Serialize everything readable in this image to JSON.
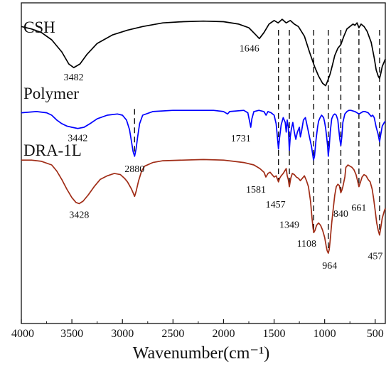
{
  "chart_data": {
    "type": "line",
    "title": "",
    "xlabel": "Wavenumber(cm⁻¹)",
    "ylabel": "",
    "xlim": [
      4000,
      400
    ],
    "x_reversed": true,
    "x_ticks": [
      4000,
      3500,
      3000,
      2500,
      2000,
      1500,
      1000,
      500
    ],
    "grid": false,
    "legend": "none",
    "series": [
      {
        "name": "CSH",
        "color": "#000000",
        "points": [
          [
            4000,
            91
          ],
          [
            3900,
            89
          ],
          [
            3800,
            86
          ],
          [
            3700,
            80
          ],
          [
            3600,
            70
          ],
          [
            3530,
            60
          ],
          [
            3482,
            57
          ],
          [
            3420,
            60
          ],
          [
            3350,
            68
          ],
          [
            3250,
            77
          ],
          [
            3100,
            84
          ],
          [
            2950,
            88
          ],
          [
            2800,
            91
          ],
          [
            2600,
            94
          ],
          [
            2400,
            95
          ],
          [
            2200,
            95.5
          ],
          [
            2000,
            95
          ],
          [
            1850,
            93
          ],
          [
            1750,
            90
          ],
          [
            1680,
            84
          ],
          [
            1646,
            81
          ],
          [
            1600,
            86
          ],
          [
            1550,
            93
          ],
          [
            1500,
            96
          ],
          [
            1460,
            94
          ],
          [
            1420,
            97
          ],
          [
            1380,
            94
          ],
          [
            1340,
            96
          ],
          [
            1300,
            93
          ],
          [
            1260,
            91
          ],
          [
            1200,
            83
          ],
          [
            1150,
            70
          ],
          [
            1100,
            58
          ],
          [
            1060,
            50
          ],
          [
            1020,
            44
          ],
          [
            990,
            42
          ],
          [
            970,
            46
          ],
          [
            945,
            52
          ],
          [
            920,
            60
          ],
          [
            900,
            67
          ],
          [
            870,
            73
          ],
          [
            840,
            76
          ],
          [
            810,
            83
          ],
          [
            780,
            89
          ],
          [
            750,
            91
          ],
          [
            720,
            93
          ],
          [
            700,
            92
          ],
          [
            680,
            94
          ],
          [
            661,
            90
          ],
          [
            640,
            93
          ],
          [
            610,
            91
          ],
          [
            580,
            87
          ],
          [
            540,
            78
          ],
          [
            510,
            65
          ],
          [
            490,
            55
          ],
          [
            470,
            50
          ],
          [
            457,
            48
          ],
          [
            445,
            52
          ],
          [
            430,
            58
          ],
          [
            410,
            62
          ],
          [
            400,
            64
          ]
        ],
        "peak_labels": [
          3482,
          1646
        ]
      },
      {
        "name": "Polymer",
        "color": "#0000ff",
        "points": [
          [
            4000,
            42
          ],
          [
            3850,
            43
          ],
          [
            3750,
            42
          ],
          [
            3700,
            40
          ],
          [
            3650,
            36
          ],
          [
            3600,
            33
          ],
          [
            3550,
            31
          ],
          [
            3500,
            30
          ],
          [
            3442,
            29
          ],
          [
            3380,
            30
          ],
          [
            3320,
            33
          ],
          [
            3250,
            37
          ],
          [
            3150,
            40
          ],
          [
            3050,
            41
          ],
          [
            3000,
            40
          ],
          [
            2960,
            36
          ],
          [
            2930,
            28
          ],
          [
            2910,
            18
          ],
          [
            2895,
            10
          ],
          [
            2880,
            6
          ],
          [
            2865,
            12
          ],
          [
            2850,
            22
          ],
          [
            2830,
            33
          ],
          [
            2800,
            40
          ],
          [
            2700,
            43
          ],
          [
            2500,
            44
          ],
          [
            2300,
            44
          ],
          [
            2100,
            44
          ],
          [
            2000,
            43
          ],
          [
            1960,
            41
          ],
          [
            1940,
            43
          ],
          [
            1800,
            44
          ],
          [
            1760,
            42
          ],
          [
            1740,
            34
          ],
          [
            1731,
            30
          ],
          [
            1720,
            37
          ],
          [
            1700,
            43
          ],
          [
            1650,
            44
          ],
          [
            1600,
            43
          ],
          [
            1580,
            40
          ],
          [
            1560,
            43
          ],
          [
            1530,
            42
          ],
          [
            1500,
            40
          ],
          [
            1480,
            33
          ],
          [
            1465,
            20
          ],
          [
            1457,
            12
          ],
          [
            1445,
            22
          ],
          [
            1430,
            32
          ],
          [
            1410,
            38
          ],
          [
            1390,
            34
          ],
          [
            1380,
            26
          ],
          [
            1370,
            36
          ],
          [
            1360,
            30
          ],
          [
            1349,
            11
          ],
          [
            1340,
            22
          ],
          [
            1330,
            28
          ],
          [
            1315,
            34
          ],
          [
            1300,
            26
          ],
          [
            1285,
            20
          ],
          [
            1270,
            26
          ],
          [
            1250,
            30
          ],
          [
            1240,
            22
          ],
          [
            1230,
            26
          ],
          [
            1210,
            36
          ],
          [
            1190,
            38
          ],
          [
            1170,
            30
          ],
          [
            1150,
            22
          ],
          [
            1130,
            14
          ],
          [
            1110,
            3
          ],
          [
            1100,
            6
          ],
          [
            1085,
            20
          ],
          [
            1070,
            30
          ],
          [
            1060,
            35
          ],
          [
            1045,
            38
          ],
          [
            1030,
            40
          ],
          [
            1010,
            38
          ],
          [
            1000,
            34
          ],
          [
            990,
            29
          ],
          [
            980,
            22
          ],
          [
            970,
            14
          ],
          [
            964,
            6
          ],
          [
            955,
            14
          ],
          [
            945,
            26
          ],
          [
            930,
            37
          ],
          [
            915,
            40
          ],
          [
            900,
            41
          ],
          [
            885,
            40
          ],
          [
            870,
            36
          ],
          [
            860,
            28
          ],
          [
            850,
            20
          ],
          [
            840,
            15
          ],
          [
            830,
            22
          ],
          [
            820,
            34
          ],
          [
            800,
            41
          ],
          [
            780,
            43
          ],
          [
            760,
            44
          ],
          [
            740,
            44
          ],
          [
            700,
            43
          ],
          [
            680,
            42
          ],
          [
            661,
            41
          ],
          [
            640,
            42
          ],
          [
            620,
            43
          ],
          [
            600,
            43
          ],
          [
            570,
            42
          ],
          [
            540,
            39
          ],
          [
            525,
            40
          ],
          [
            510,
            38
          ],
          [
            490,
            30
          ],
          [
            470,
            24
          ],
          [
            457,
            18
          ],
          [
            445,
            24
          ],
          [
            430,
            31
          ],
          [
            410,
            34
          ],
          [
            400,
            35
          ]
        ],
        "peak_labels": [
          3442,
          1731
        ]
      },
      {
        "name": "DRA-1L",
        "color": "#a02c16",
        "points": [
          [
            4000,
            44
          ],
          [
            3900,
            44
          ],
          [
            3800,
            43
          ],
          [
            3700,
            40
          ],
          [
            3650,
            35
          ],
          [
            3600,
            28
          ],
          [
            3550,
            20
          ],
          [
            3500,
            13
          ],
          [
            3460,
            9
          ],
          [
            3428,
            8
          ],
          [
            3390,
            10
          ],
          [
            3340,
            15
          ],
          [
            3280,
            22
          ],
          [
            3220,
            28
          ],
          [
            3150,
            31
          ],
          [
            3080,
            33
          ],
          [
            3020,
            32
          ],
          [
            2980,
            29
          ],
          [
            2950,
            26
          ],
          [
            2930,
            23
          ],
          [
            2910,
            20
          ],
          [
            2895,
            17
          ],
          [
            2880,
            14
          ],
          [
            2865,
            18
          ],
          [
            2840,
            27
          ],
          [
            2810,
            35
          ],
          [
            2780,
            39
          ],
          [
            2700,
            42
          ],
          [
            2600,
            43.5
          ],
          [
            2400,
            44
          ],
          [
            2200,
            44.5
          ],
          [
            2000,
            44
          ],
          [
            1900,
            43
          ],
          [
            1800,
            42
          ],
          [
            1700,
            40
          ],
          [
            1640,
            37
          ],
          [
            1600,
            34
          ],
          [
            1581,
            30
          ],
          [
            1560,
            33
          ],
          [
            1540,
            34
          ],
          [
            1520,
            32
          ],
          [
            1500,
            30
          ],
          [
            1480,
            31
          ],
          [
            1465,
            28
          ],
          [
            1457,
            26
          ],
          [
            1445,
            29
          ],
          [
            1430,
            31
          ],
          [
            1410,
            33
          ],
          [
            1395,
            35
          ],
          [
            1380,
            37
          ],
          [
            1370,
            31
          ],
          [
            1360,
            28
          ],
          [
            1349,
            22
          ],
          [
            1335,
            29
          ],
          [
            1320,
            33
          ],
          [
            1300,
            32
          ],
          [
            1280,
            30
          ],
          [
            1260,
            29
          ],
          [
            1240,
            27
          ],
          [
            1220,
            29
          ],
          [
            1200,
            31
          ],
          [
            1180,
            27
          ],
          [
            1160,
            22
          ],
          [
            1140,
            10
          ],
          [
            1125,
            -4
          ],
          [
            1115,
            -12
          ],
          [
            1108,
            -16
          ],
          [
            1095,
            -14
          ],
          [
            1080,
            -10
          ],
          [
            1060,
            -8
          ],
          [
            1040,
            -10
          ],
          [
            1020,
            -14
          ],
          [
            1000,
            -20
          ],
          [
            985,
            -27
          ],
          [
            975,
            -31
          ],
          [
            964,
            -33
          ],
          [
            955,
            -30
          ],
          [
            945,
            -22
          ],
          [
            930,
            -8
          ],
          [
            915,
            4
          ],
          [
            900,
            15
          ],
          [
            885,
            22
          ],
          [
            870,
            24
          ],
          [
            855,
            23
          ],
          [
            845,
            19
          ],
          [
            840,
            17
          ],
          [
            830,
            19
          ],
          [
            820,
            22
          ],
          [
            800,
            30
          ],
          [
            790,
            38
          ],
          [
            770,
            40
          ],
          [
            750,
            39
          ],
          [
            730,
            38
          ],
          [
            710,
            36
          ],
          [
            690,
            32
          ],
          [
            675,
            27
          ],
          [
            661,
            22
          ],
          [
            645,
            26
          ],
          [
            630,
            30
          ],
          [
            610,
            32
          ],
          [
            590,
            31
          ],
          [
            570,
            28
          ],
          [
            550,
            26
          ],
          [
            530,
            20
          ],
          [
            515,
            12
          ],
          [
            500,
            2
          ],
          [
            485,
            -8
          ],
          [
            470,
            -14
          ],
          [
            457,
            -18
          ],
          [
            445,
            -12
          ],
          [
            430,
            -4
          ],
          [
            410,
            2
          ],
          [
            400,
            4
          ]
        ],
        "peak_labels": [
          3428,
          2880,
          1581,
          1457,
          1349,
          1108,
          964,
          840,
          661,
          457
        ]
      }
    ],
    "annotations": [
      "3482",
      "1646",
      "3442",
      "1731",
      "2880",
      "3428",
      "1581",
      "1457",
      "1349",
      "1108",
      "964",
      "840",
      "661",
      "457"
    ],
    "dashed_reference_lines": [
      2880,
      1457,
      1349,
      1108,
      964,
      840,
      661,
      457
    ]
  }
}
